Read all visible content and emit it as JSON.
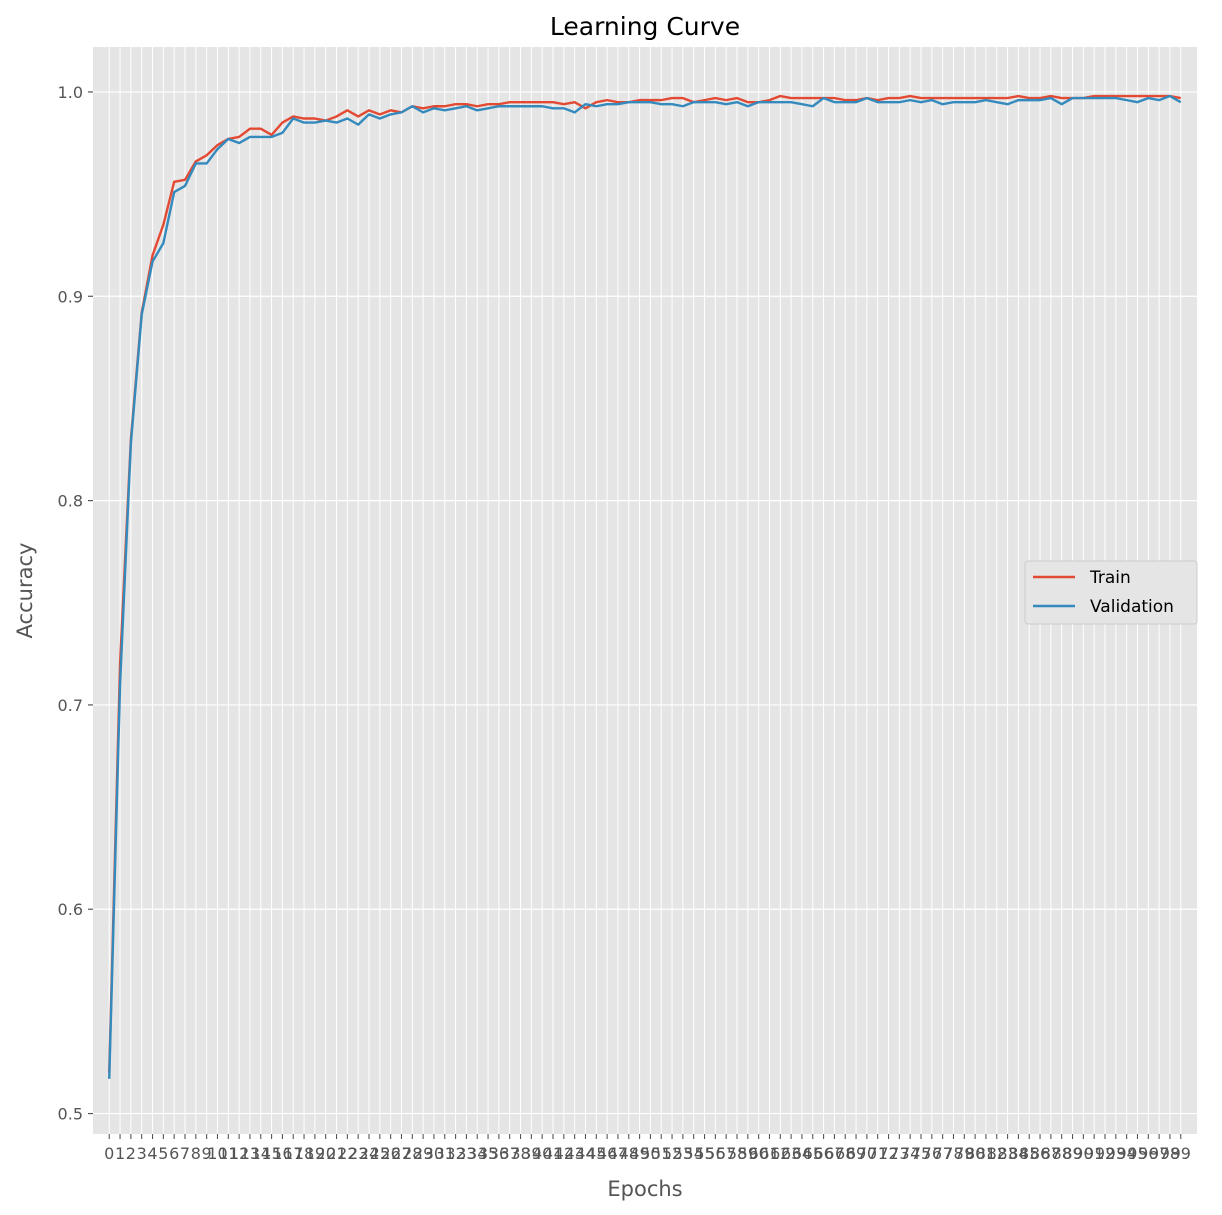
{
  "chart_data": {
    "type": "line",
    "title": "Learning Curve",
    "xlabel": "Epochs",
    "ylabel": "Accuracy",
    "xlim": [
      -1.5,
      100.5
    ],
    "ylim": [
      0.49,
      1.022
    ],
    "yticks": [
      0.5,
      0.6,
      0.7,
      0.8,
      0.9,
      1.0
    ],
    "ytick_labels": [
      "0.5",
      "0.6",
      "0.7",
      "0.8",
      "0.9",
      "1.0"
    ],
    "grid": true,
    "legend_position": "center-right",
    "x": [
      0,
      1,
      2,
      3,
      4,
      5,
      6,
      7,
      8,
      9,
      10,
      11,
      12,
      13,
      14,
      15,
      16,
      17,
      18,
      19,
      20,
      21,
      22,
      23,
      24,
      25,
      26,
      27,
      28,
      29,
      30,
      31,
      32,
      33,
      34,
      35,
      36,
      37,
      38,
      39,
      40,
      41,
      42,
      43,
      44,
      45,
      46,
      47,
      48,
      49,
      50,
      51,
      52,
      53,
      54,
      55,
      56,
      57,
      58,
      59,
      60,
      61,
      62,
      63,
      64,
      65,
      66,
      67,
      68,
      69,
      70,
      71,
      72,
      73,
      74,
      75,
      76,
      77,
      78,
      79,
      80,
      81,
      82,
      83,
      84,
      85,
      86,
      87,
      88,
      89,
      90,
      91,
      92,
      93,
      94,
      95,
      96,
      97,
      98,
      99
    ],
    "series": [
      {
        "name": "Train",
        "color": "#E24A33",
        "values": [
          0.52,
          0.72,
          0.83,
          0.892,
          0.92,
          0.935,
          0.956,
          0.957,
          0.966,
          0.969,
          0.974,
          0.977,
          0.978,
          0.982,
          0.982,
          0.979,
          0.985,
          0.988,
          0.987,
          0.987,
          0.986,
          0.988,
          0.991,
          0.988,
          0.991,
          0.989,
          0.991,
          0.99,
          0.993,
          0.992,
          0.993,
          0.993,
          0.994,
          0.994,
          0.993,
          0.994,
          0.994,
          0.995,
          0.995,
          0.995,
          0.995,
          0.995,
          0.994,
          0.995,
          0.992,
          0.995,
          0.996,
          0.995,
          0.995,
          0.996,
          0.996,
          0.996,
          0.997,
          0.997,
          0.995,
          0.996,
          0.997,
          0.996,
          0.997,
          0.995,
          0.995,
          0.996,
          0.998,
          0.997,
          0.997,
          0.997,
          0.997,
          0.997,
          0.996,
          0.996,
          0.997,
          0.996,
          0.997,
          0.997,
          0.998,
          0.997,
          0.997,
          0.997,
          0.997,
          0.997,
          0.997,
          0.997,
          0.997,
          0.997,
          0.998,
          0.997,
          0.997,
          0.998,
          0.997,
          0.997,
          0.997,
          0.998,
          0.998,
          0.998,
          0.998,
          0.998,
          0.998,
          0.998,
          0.998,
          0.997
        ]
      },
      {
        "name": "Validation",
        "color": "#348ABD",
        "values": [
          0.517,
          0.71,
          0.828,
          0.891,
          0.917,
          0.926,
          0.951,
          0.954,
          0.965,
          0.965,
          0.972,
          0.977,
          0.975,
          0.978,
          0.978,
          0.978,
          0.98,
          0.987,
          0.985,
          0.985,
          0.986,
          0.985,
          0.987,
          0.984,
          0.989,
          0.987,
          0.989,
          0.99,
          0.993,
          0.99,
          0.992,
          0.991,
          0.992,
          0.993,
          0.991,
          0.992,
          0.993,
          0.993,
          0.993,
          0.993,
          0.993,
          0.992,
          0.992,
          0.99,
          0.994,
          0.993,
          0.994,
          0.994,
          0.995,
          0.995,
          0.995,
          0.994,
          0.994,
          0.993,
          0.995,
          0.995,
          0.995,
          0.994,
          0.995,
          0.993,
          0.995,
          0.995,
          0.995,
          0.995,
          0.994,
          0.993,
          0.997,
          0.995,
          0.995,
          0.995,
          0.997,
          0.995,
          0.995,
          0.995,
          0.996,
          0.995,
          0.996,
          0.994,
          0.995,
          0.995,
          0.995,
          0.996,
          0.995,
          0.994,
          0.996,
          0.996,
          0.996,
          0.997,
          0.994,
          0.997,
          0.997,
          0.997,
          0.997,
          0.997,
          0.996,
          0.995,
          0.997,
          0.996,
          0.998,
          0.995
        ]
      }
    ]
  }
}
